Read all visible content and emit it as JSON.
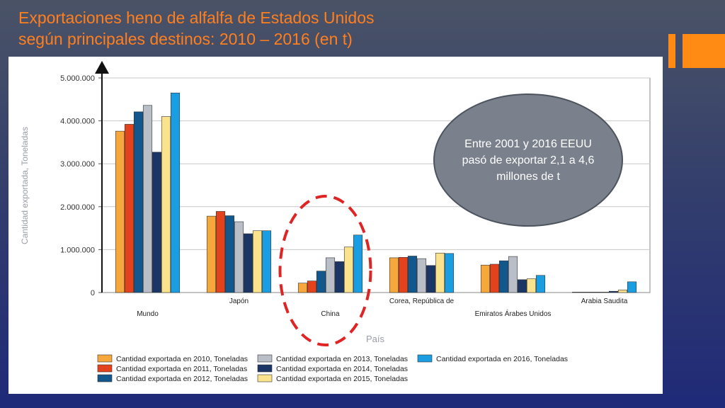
{
  "slide": {
    "title_line1": "Exportaciones heno de alfalfa de Estados Unidos",
    "title_line2": "según principales destinos: 2010 – 2016 (en t)",
    "callout": "Entre 2001 y 2016 EEUU pasó de exportar 2,1 a 4,6 millones de t",
    "colors": {
      "title": "#ff7f1e",
      "accent": "#ff8a14",
      "callout_fill": "#7a818c",
      "highlight_ring": "#e02424"
    }
  },
  "chart_data": {
    "type": "bar",
    "xlabel": "País",
    "ylabel": "Cantidad exportada, Toneladas",
    "ylim": [
      0,
      5000000
    ],
    "yticks": [
      0,
      1000000,
      2000000,
      3000000,
      4000000,
      5000000
    ],
    "ytick_labels": [
      "0",
      "1.000.000",
      "2.000.000",
      "3.000.000",
      "4.000.000",
      "5.000.000"
    ],
    "grid": true,
    "legend_position": "bottom",
    "categories": [
      "Mundo",
      "Japón",
      "China",
      "Corea, República de",
      "Emiratos Árabes Unidos",
      "Arabia Saudita"
    ],
    "series": [
      {
        "name": "Cantidad exportada en 2010, Toneladas",
        "color": "#f7a83c",
        "values": [
          3760000,
          1780000,
          220000,
          810000,
          640000,
          10000
        ]
      },
      {
        "name": "Cantidad exportada en 2011, Toneladas",
        "color": "#e2431c",
        "values": [
          3920000,
          1890000,
          270000,
          820000,
          660000,
          10000
        ]
      },
      {
        "name": "Cantidad exportada en 2012, Toneladas",
        "color": "#12588c",
        "values": [
          4210000,
          1790000,
          500000,
          850000,
          740000,
          10000
        ]
      },
      {
        "name": "Cantidad exportada en 2013, Toneladas",
        "color": "#b9bec7",
        "values": [
          4360000,
          1650000,
          810000,
          790000,
          840000,
          10000
        ]
      },
      {
        "name": "Cantidad exportada en 2014, Toneladas",
        "color": "#1b3564",
        "values": [
          3270000,
          1370000,
          720000,
          630000,
          300000,
          30000
        ]
      },
      {
        "name": "Cantidad exportada en 2015, Toneladas",
        "color": "#fbe38d",
        "values": [
          4100000,
          1440000,
          1060000,
          920000,
          320000,
          60000
        ]
      },
      {
        "name": "Cantidad exportada en 2016, Toneladas",
        "color": "#1b9de2",
        "values": [
          4650000,
          1440000,
          1340000,
          910000,
          400000,
          250000
        ]
      }
    ]
  }
}
